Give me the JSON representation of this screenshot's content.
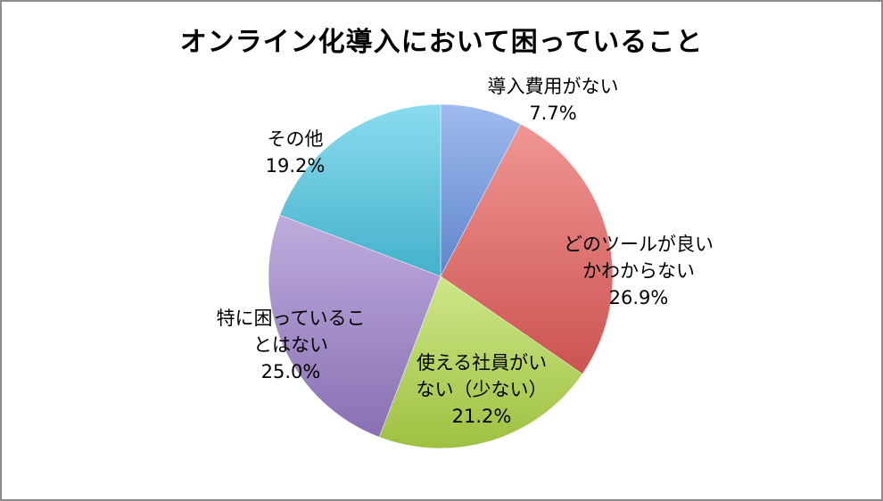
{
  "chart_data": {
    "type": "pie",
    "title": "オンライン化導入において困っていること",
    "slices": [
      {
        "label_lines": [
          "導入費用がない"
        ],
        "value": 7.7,
        "value_label": "7.7%",
        "color": "#6b97e6"
      },
      {
        "label_lines": [
          "どのツールが良い",
          "かわからない"
        ],
        "value": 26.9,
        "value_label": "26.9%",
        "color": "#e85e5b"
      },
      {
        "label_lines": [
          "使える社員がい",
          "ない（少ない）"
        ],
        "value": 21.2,
        "value_label": "21.2%",
        "color": "#b3da4a"
      },
      {
        "label_lines": [
          "特に困っているこ",
          "とはない"
        ],
        "value": 25.0,
        "value_label": "25.0%",
        "color": "#9b7fcb"
      },
      {
        "label_lines": [
          "その他"
        ],
        "value": 19.2,
        "value_label": "19.2%",
        "color": "#4cc9e6"
      }
    ],
    "legend": "none"
  }
}
